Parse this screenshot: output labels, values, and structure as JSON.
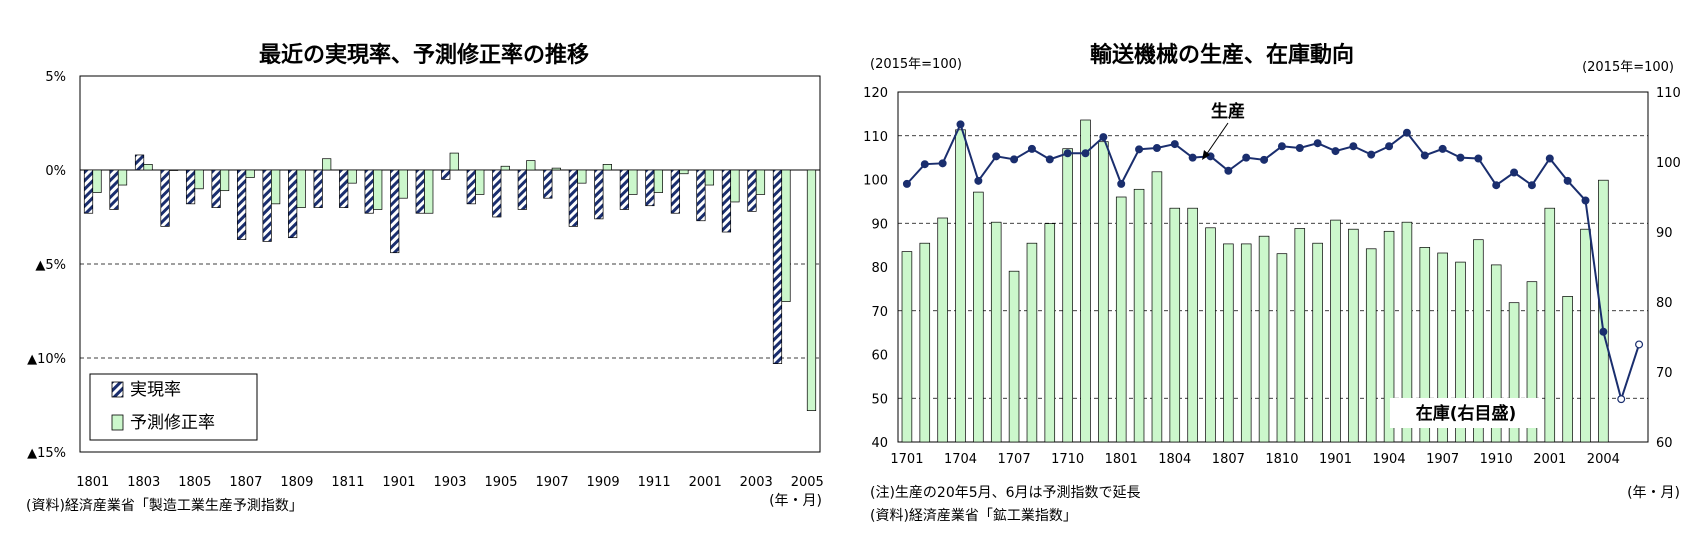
{
  "chart_data": [
    {
      "type": "bar",
      "title": "最近の実現率、予測修正率の推移",
      "xlabel": "(年・月)",
      "ylabel": "",
      "ylim": [
        -15,
        5
      ],
      "yticks": [
        5,
        0,
        -5,
        -10,
        -15
      ],
      "ytick_labels": [
        "5%",
        "0%",
        "▲5%",
        "▲10%",
        "▲15%"
      ],
      "xtick_labels": [
        "1801",
        "1803",
        "1805",
        "1807",
        "1809",
        "1811",
        "1901",
        "1903",
        "1905",
        "1907",
        "1909",
        "1911",
        "2001",
        "2003",
        "2005"
      ],
      "source": "(資料)経済産業省「製造工業生産予測指数」",
      "legend_position": "bottom-left",
      "series": [
        {
          "name": "実現率",
          "values": [
            -2.3,
            -2.1,
            0.8,
            -3.0,
            -1.8,
            -2.0,
            -3.7,
            -3.8,
            -3.6,
            -2.0,
            -2.0,
            -2.3,
            -4.4,
            -2.3,
            -0.5,
            -1.8,
            -2.5,
            -2.1,
            -1.5,
            -3.0,
            -2.6,
            -2.1,
            -1.9,
            -2.3,
            -2.7,
            -3.3,
            -2.2,
            -10.3,
            null
          ]
        },
        {
          "name": "予測修正率",
          "values": [
            -1.2,
            -0.8,
            0.3,
            0.0,
            -1.0,
            -1.1,
            -0.4,
            -1.8,
            -2.0,
            0.6,
            -0.7,
            -2.1,
            -1.5,
            -2.3,
            0.9,
            -1.3,
            0.2,
            0.5,
            0.1,
            -0.7,
            0.3,
            -1.3,
            -1.2,
            -0.2,
            -0.8,
            -1.7,
            -1.3,
            -7.0,
            -12.8
          ]
        }
      ]
    },
    {
      "type": "bar",
      "title": "輸送機械の生産、在庫動向",
      "left_axis_unit": "(2015年=100)",
      "right_axis_unit": "(2015年=100)",
      "xlabel": "(年・月)",
      "ylim_left": [
        40,
        120
      ],
      "ylim_right": [
        60,
        110
      ],
      "yticks_left": [
        40,
        50,
        60,
        70,
        80,
        90,
        100,
        110,
        120
      ],
      "yticks_right": [
        60,
        70,
        80,
        90,
        100,
        110
      ],
      "xtick_labels": [
        "1701",
        "1704",
        "1707",
        "1710",
        "1801",
        "1804",
        "1807",
        "1810",
        "1901",
        "1904",
        "1907",
        "1910",
        "2001",
        "2004"
      ],
      "note": "(注)生産の20年5月、6月は予測指数で延長",
      "source": "(資料)経済産業省「鉱工業指数」",
      "series": [
        {
          "name": "在庫(右目盛)",
          "type": "bar",
          "axis": "right",
          "values": [
            87.2,
            88.4,
            92.0,
            104.6,
            95.7,
            91.4,
            84.4,
            88.4,
            91.2,
            101.9,
            106.0,
            102.9,
            95.0,
            96.1,
            98.6,
            93.4,
            93.4,
            90.6,
            88.3,
            88.3,
            89.4,
            86.9,
            90.5,
            88.4,
            91.7,
            90.4,
            87.6,
            90.1,
            91.4,
            87.8,
            87.0,
            85.7,
            88.9,
            85.3,
            79.9,
            82.9,
            93.4,
            80.8,
            90.4,
            97.4
          ]
        },
        {
          "name": "生産",
          "type": "line",
          "axis": "left",
          "values": [
            99.0,
            103.5,
            103.7,
            112.6,
            99.7,
            105.3,
            104.6,
            107.0,
            104.6,
            106.0,
            106.0,
            109.7,
            99.0,
            106.9,
            107.2,
            108.1,
            105.0,
            105.3,
            102.0,
            105.0,
            104.5,
            107.6,
            107.2,
            108.3,
            106.5,
            107.6,
            105.7,
            107.6,
            110.7,
            105.5,
            107.0,
            105.0,
            104.8,
            98.7,
            101.6,
            98.7,
            104.8,
            99.7,
            95.2,
            65.2,
            49.8,
            62.3
          ],
          "projected_from_index": 40
        }
      ],
      "annotations": [
        "生産",
        "在庫(右目盛)"
      ]
    }
  ]
}
